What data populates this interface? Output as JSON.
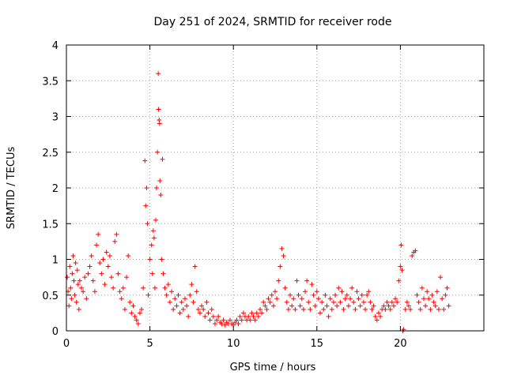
{
  "chart_data": {
    "type": "scatter",
    "title": "Day 251 of 2024, SRMTID for receiver rode",
    "xlabel": "GPS time / hours",
    "ylabel": "SRMTID / TECUs",
    "xlim": [
      0,
      25
    ],
    "ylim": [
      0,
      4
    ],
    "x_ticks": [
      0,
      5,
      10,
      15,
      20
    ],
    "x_tick_labels": [
      "0",
      "5",
      "10",
      "15",
      "20"
    ],
    "y_ticks": [
      0,
      0.5,
      1,
      1.5,
      2,
      2.5,
      3,
      3.5,
      4
    ],
    "y_tick_labels": [
      "0",
      "0.5",
      "1",
      "1.5",
      "2",
      "2.5",
      "3",
      "3.5",
      "4"
    ],
    "grid": true,
    "marker": "+",
    "color": "#ff0000",
    "series": [
      {
        "name": "SRMTID",
        "points": [
          [
            0.05,
            0.75
          ],
          [
            0.1,
            0.55
          ],
          [
            0.15,
            0.35
          ],
          [
            0.2,
            0.9
          ],
          [
            0.25,
            0.6
          ],
          [
            0.3,
            0.45
          ],
          [
            0.35,
            0.8
          ],
          [
            0.4,
            1.05
          ],
          [
            0.45,
            0.7
          ],
          [
            0.5,
            0.5
          ],
          [
            0.55,
            0.95
          ],
          [
            0.6,
            0.4
          ],
          [
            0.65,
            0.85
          ],
          [
            0.7,
            0.65
          ],
          [
            0.75,
            0.3
          ],
          [
            0.8,
            0.7
          ],
          [
            0.9,
            0.6
          ],
          [
            1.0,
            0.55
          ],
          [
            1.1,
            0.75
          ],
          [
            1.2,
            0.45
          ],
          [
            1.3,
            0.8
          ],
          [
            1.4,
            0.9
          ],
          [
            1.5,
            1.05
          ],
          [
            1.6,
            0.7
          ],
          [
            1.7,
            0.55
          ],
          [
            1.8,
            1.2
          ],
          [
            1.9,
            1.35
          ],
          [
            2.0,
            0.95
          ],
          [
            2.1,
            0.8
          ],
          [
            2.2,
            1.0
          ],
          [
            2.3,
            0.65
          ],
          [
            2.4,
            1.1
          ],
          [
            2.5,
            0.9
          ],
          [
            2.6,
            1.05
          ],
          [
            2.7,
            0.75
          ],
          [
            2.8,
            0.6
          ],
          [
            2.9,
            1.25
          ],
          [
            3.0,
            1.35
          ],
          [
            3.1,
            0.8
          ],
          [
            3.2,
            0.55
          ],
          [
            3.3,
            0.45
          ],
          [
            3.4,
            0.6
          ],
          [
            3.5,
            0.3
          ],
          [
            3.6,
            0.75
          ],
          [
            3.7,
            1.05
          ],
          [
            3.8,
            0.4
          ],
          [
            3.9,
            0.25
          ],
          [
            4.0,
            0.35
          ],
          [
            4.1,
            0.2
          ],
          [
            4.2,
            0.15
          ],
          [
            4.3,
            0.1
          ],
          [
            4.4,
            0.25
          ],
          [
            4.5,
            0.3
          ],
          [
            4.6,
            0.6
          ],
          [
            4.7,
            2.38
          ],
          [
            4.75,
            1.75
          ],
          [
            4.8,
            2.0
          ],
          [
            4.85,
            1.5
          ],
          [
            4.9,
            0.5
          ],
          [
            5.0,
            1.0
          ],
          [
            5.1,
            1.2
          ],
          [
            5.15,
            0.8
          ],
          [
            5.2,
            1.4
          ],
          [
            5.25,
            1.3
          ],
          [
            5.3,
            0.6
          ],
          [
            5.35,
            1.55
          ],
          [
            5.4,
            2.0
          ],
          [
            5.45,
            2.5
          ],
          [
            5.5,
            3.6
          ],
          [
            5.52,
            3.1
          ],
          [
            5.55,
            2.95
          ],
          [
            5.58,
            2.9
          ],
          [
            5.6,
            2.1
          ],
          [
            5.65,
            1.9
          ],
          [
            5.7,
            1.0
          ],
          [
            5.75,
            2.4
          ],
          [
            5.8,
            0.8
          ],
          [
            5.9,
            0.6
          ],
          [
            6.0,
            0.5
          ],
          [
            6.1,
            0.65
          ],
          [
            6.2,
            0.4
          ],
          [
            6.3,
            0.55
          ],
          [
            6.4,
            0.3
          ],
          [
            6.5,
            0.45
          ],
          [
            6.6,
            0.35
          ],
          [
            6.7,
            0.5
          ],
          [
            6.8,
            0.25
          ],
          [
            6.9,
            0.4
          ],
          [
            7.0,
            0.3
          ],
          [
            7.1,
            0.45
          ],
          [
            7.2,
            0.35
          ],
          [
            7.3,
            0.2
          ],
          [
            7.4,
            0.5
          ],
          [
            7.5,
            0.65
          ],
          [
            7.6,
            0.4
          ],
          [
            7.7,
            0.9
          ],
          [
            7.8,
            0.55
          ],
          [
            7.9,
            0.3
          ],
          [
            8.0,
            0.25
          ],
          [
            8.1,
            0.35
          ],
          [
            8.2,
            0.3
          ],
          [
            8.3,
            0.2
          ],
          [
            8.4,
            0.4
          ],
          [
            8.5,
            0.25
          ],
          [
            8.6,
            0.15
          ],
          [
            8.7,
            0.3
          ],
          [
            8.8,
            0.2
          ],
          [
            8.9,
            0.1
          ],
          [
            9.0,
            0.15
          ],
          [
            9.1,
            0.2
          ],
          [
            9.2,
            0.12
          ],
          [
            9.3,
            0.1
          ],
          [
            9.4,
            0.15
          ],
          [
            9.5,
            0.08
          ],
          [
            9.6,
            0.12
          ],
          [
            9.7,
            0.1
          ],
          [
            9.8,
            0.15
          ],
          [
            9.9,
            0.1
          ],
          [
            10.0,
            0.08
          ],
          [
            10.1,
            0.12
          ],
          [
            10.2,
            0.15
          ],
          [
            10.3,
            0.1
          ],
          [
            10.4,
            0.2
          ],
          [
            10.5,
            0.15
          ],
          [
            10.6,
            0.25
          ],
          [
            10.7,
            0.2
          ],
          [
            10.8,
            0.15
          ],
          [
            10.9,
            0.2
          ],
          [
            11.0,
            0.15
          ],
          [
            11.1,
            0.25
          ],
          [
            11.2,
            0.2
          ],
          [
            11.3,
            0.15
          ],
          [
            11.4,
            0.25
          ],
          [
            11.5,
            0.2
          ],
          [
            11.6,
            0.3
          ],
          [
            11.7,
            0.25
          ],
          [
            11.8,
            0.4
          ],
          [
            11.9,
            0.35
          ],
          [
            12.0,
            0.3
          ],
          [
            12.1,
            0.45
          ],
          [
            12.2,
            0.4
          ],
          [
            12.3,
            0.5
          ],
          [
            12.4,
            0.35
          ],
          [
            12.5,
            0.55
          ],
          [
            12.6,
            0.45
          ],
          [
            12.7,
            0.7
          ],
          [
            12.8,
            0.9
          ],
          [
            12.9,
            1.15
          ],
          [
            13.0,
            1.05
          ],
          [
            13.1,
            0.6
          ],
          [
            13.2,
            0.4
          ],
          [
            13.3,
            0.3
          ],
          [
            13.4,
            0.5
          ],
          [
            13.5,
            0.35
          ],
          [
            13.6,
            0.45
          ],
          [
            13.7,
            0.3
          ],
          [
            13.8,
            0.7
          ],
          [
            13.9,
            0.5
          ],
          [
            14.0,
            0.35
          ],
          [
            14.1,
            0.45
          ],
          [
            14.2,
            0.3
          ],
          [
            14.3,
            0.55
          ],
          [
            14.4,
            0.7
          ],
          [
            14.5,
            0.4
          ],
          [
            14.6,
            0.3
          ],
          [
            14.7,
            0.65
          ],
          [
            14.8,
            0.5
          ],
          [
            14.9,
            0.35
          ],
          [
            15.0,
            0.55
          ],
          [
            15.1,
            0.45
          ],
          [
            15.2,
            0.25
          ],
          [
            15.3,
            0.4
          ],
          [
            15.4,
            0.3
          ],
          [
            15.5,
            0.5
          ],
          [
            15.6,
            0.35
          ],
          [
            15.7,
            0.2
          ],
          [
            15.8,
            0.45
          ],
          [
            15.9,
            0.3
          ],
          [
            16.0,
            0.4
          ],
          [
            16.1,
            0.5
          ],
          [
            16.2,
            0.35
          ],
          [
            16.3,
            0.6
          ],
          [
            16.4,
            0.4
          ],
          [
            16.5,
            0.55
          ],
          [
            16.6,
            0.3
          ],
          [
            16.7,
            0.45
          ],
          [
            16.8,
            0.5
          ],
          [
            16.9,
            0.35
          ],
          [
            17.0,
            0.45
          ],
          [
            17.1,
            0.6
          ],
          [
            17.2,
            0.4
          ],
          [
            17.3,
            0.3
          ],
          [
            17.4,
            0.55
          ],
          [
            17.5,
            0.45
          ],
          [
            17.6,
            0.35
          ],
          [
            17.7,
            0.5
          ],
          [
            17.8,
            0.4
          ],
          [
            17.9,
            0.3
          ],
          [
            18.0,
            0.5
          ],
          [
            18.1,
            0.55
          ],
          [
            18.2,
            0.4
          ],
          [
            18.3,
            0.3
          ],
          [
            18.4,
            0.35
          ],
          [
            18.5,
            0.2
          ],
          [
            18.6,
            0.15
          ],
          [
            18.7,
            0.25
          ],
          [
            18.8,
            0.2
          ],
          [
            18.9,
            0.3
          ],
          [
            19.0,
            0.35
          ],
          [
            19.1,
            0.3
          ],
          [
            19.2,
            0.4
          ],
          [
            19.3,
            0.35
          ],
          [
            19.4,
            0.3
          ],
          [
            19.5,
            0.4
          ],
          [
            19.6,
            0.35
          ],
          [
            19.7,
            0.45
          ],
          [
            19.8,
            0.4
          ],
          [
            19.9,
            0.7
          ],
          [
            20.0,
            0.9
          ],
          [
            20.05,
            1.2
          ],
          [
            20.1,
            0.85
          ],
          [
            20.15,
            0.0
          ],
          [
            20.2,
            0.02
          ],
          [
            20.3,
            0.3
          ],
          [
            20.4,
            0.4
          ],
          [
            20.5,
            0.35
          ],
          [
            20.6,
            0.3
          ],
          [
            20.7,
            1.05
          ],
          [
            20.8,
            1.1
          ],
          [
            20.9,
            1.12
          ],
          [
            21.0,
            0.5
          ],
          [
            21.1,
            0.4
          ],
          [
            21.2,
            0.3
          ],
          [
            21.3,
            0.6
          ],
          [
            21.4,
            0.45
          ],
          [
            21.5,
            0.35
          ],
          [
            21.6,
            0.55
          ],
          [
            21.7,
            0.45
          ],
          [
            21.8,
            0.3
          ],
          [
            21.9,
            0.5
          ],
          [
            22.0,
            0.4
          ],
          [
            22.1,
            0.35
          ],
          [
            22.2,
            0.55
          ],
          [
            22.3,
            0.3
          ],
          [
            22.4,
            0.75
          ],
          [
            22.5,
            0.45
          ],
          [
            22.6,
            0.3
          ],
          [
            22.7,
            0.5
          ],
          [
            22.8,
            0.6
          ],
          [
            22.9,
            0.35
          ]
        ]
      }
    ]
  }
}
